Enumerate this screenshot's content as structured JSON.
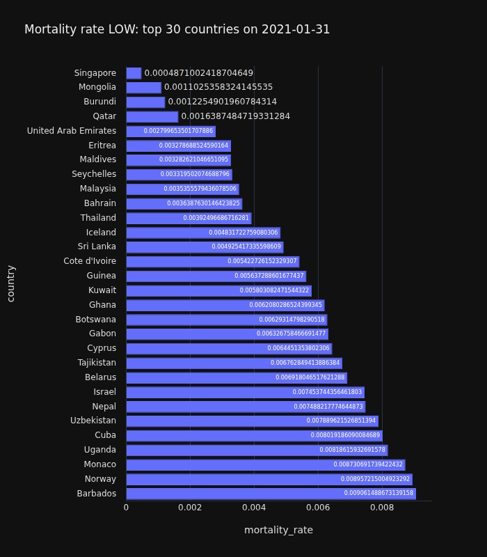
{
  "chart_data": {
    "type": "bar",
    "orientation": "horizontal",
    "title": "Mortality rate LOW: top 30 countries on 2021-01-31",
    "x_label": "mortality_rate",
    "y_label": "country",
    "categories": [
      "Singapore",
      "Mongolia",
      "Burundi",
      "Qatar",
      "United Arab Emirates",
      "Eritrea",
      "Maldives",
      "Seychelles",
      "Malaysia",
      "Bahrain",
      "Thailand",
      "Iceland",
      "Sri Lanka",
      "Cote d'Ivoire",
      "Guinea",
      "Kuwait",
      "Ghana",
      "Botswana",
      "Gabon",
      "Cyprus",
      "Tajikistan",
      "Belarus",
      "Israel",
      "Nepal",
      "Uzbekistan",
      "Cuba",
      "Uganda",
      "Monaco",
      "Norway",
      "Barbados"
    ],
    "values": [
      0.0004871002418704649,
      0.0011025358324145535,
      0.0012254901960784314,
      0.0016387484719331284,
      0.002799653501707886,
      0.003278688524590164,
      0.003282621046651095,
      0.003319502074688796,
      0.0035355579436078506,
      0.0036387630146423825,
      0.00392496686716281,
      0.004831722759080306,
      0.004925417335598609,
      0.005422726152329307,
      0.005637288601677437,
      0.005803082471544322,
      0.0062080286524399345,
      0.00629314798290518,
      0.006326758466691477,
      0.0064451353802306,
      0.006762849413886384,
      0.006918046517621288,
      0.007453744356461803,
      0.007488217774644873,
      0.007889621526851394,
      0.008019186090084689,
      0.00818615932691578,
      0.008730691739422432,
      0.008957215004923292,
      0.009061488673139158
    ],
    "value_labels": [
      "0.0004871002418704649",
      "0.0011025358324145535",
      "0.0012254901960784314",
      "0.0016387484719331284",
      "0.002799653501707886",
      "0.003278688524590164",
      "0.003282621046651095",
      "0.003319502074688796",
      "0.0035355579436078506",
      "0.0036387630146423825",
      "0.00392496686716281",
      "0.004831722759080306",
      "0.004925417335598609",
      "0.005422726152329307",
      "0.005637288601677437",
      "0.005803082471544322",
      "0.0062080286524399345",
      "0.00629314798290518",
      "0.006326758466691477",
      "0.0064451353802306",
      "0.006762849413886384",
      "0.006918046517621288",
      "0.007453744356461803",
      "0.007488217774644873",
      "0.007889621526851394",
      "0.008019186090084689",
      "0.00818615932691578",
      "0.008730691739422432",
      "0.008957215004923292",
      "0.009061488673139158"
    ],
    "color": "#636efa",
    "xlim": [
      0,
      0.00954
    ],
    "xticks": [
      0,
      0.002,
      0.004,
      0.006,
      0.008
    ],
    "grid": true,
    "data_labels": true
  }
}
